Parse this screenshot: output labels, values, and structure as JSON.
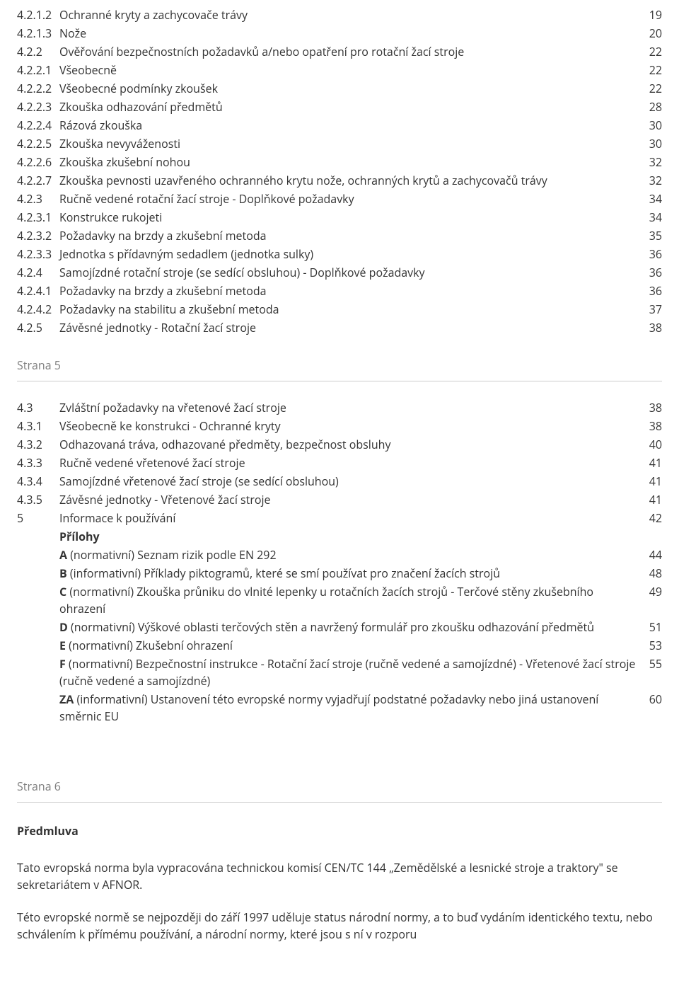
{
  "colors": {
    "text": "#333333",
    "muted": "#808080",
    "rule": "#cccccc",
    "background": "#ffffff"
  },
  "typography": {
    "font_family": "Segoe UI, Open Sans, Arial, sans-serif",
    "font_size_pt": 12,
    "line_height": 1.5
  },
  "toc1": [
    {
      "num": "4.2.1.2",
      "title": "Ochranné kryty a zachycovače trávy",
      "page": "19"
    },
    {
      "num": "4.2.1.3",
      "title": "Nože",
      "page": "20"
    },
    {
      "num": "4.2.2",
      "title": "Ověřování bezpečnostních požadavků a/nebo opatření pro rotační žací stroje",
      "page": "22"
    },
    {
      "num": "4.2.2.1",
      "title": "Všeobecně",
      "page": "22"
    },
    {
      "num": "4.2.2.2",
      "title": "Všeobecné podmínky zkoušek",
      "page": "22"
    },
    {
      "num": "4.2.2.3",
      "title": "Zkouška odhazování předmětů",
      "page": "28"
    },
    {
      "num": "4.2.2.4",
      "title": "Rázová zkouška",
      "page": "30"
    },
    {
      "num": "4.2.2.5",
      "title": "Zkouška nevyváženosti",
      "page": "30"
    },
    {
      "num": "4.2.2.6",
      "title": "Zkouška zkušební nohou",
      "page": "32"
    },
    {
      "num": "4.2.2.7",
      "title": "Zkouška pevnosti uzavřeného ochranného krytu nože, ochranných krytů a zachycovačů trávy",
      "page": "32"
    },
    {
      "num": "4.2.3",
      "title": "Ručně vedené rotační žací stroje - Doplňkové požadavky",
      "page": "34"
    },
    {
      "num": "4.2.3.1",
      "title": "Konstrukce rukojeti",
      "page": "34"
    },
    {
      "num": "4.2.3.2",
      "title": "Požadavky na brzdy a zkušební metoda",
      "page": "35"
    },
    {
      "num": "4.2.3.3",
      "title": "Jednotka s přídavným sedadlem (jednotka sulky)",
      "page": "36"
    },
    {
      "num": "4.2.4",
      "title": "Samojízdné rotační stroje (se sedící obsluhou) - Doplňkové požadavky",
      "page": "36"
    },
    {
      "num": "4.2.4.1",
      "title": "Požadavky na brzdy a zkušební metoda",
      "page": "36"
    },
    {
      "num": "4.2.4.2",
      "title": "Požadavky na stabilitu a zkušební metoda",
      "page": "37"
    },
    {
      "num": "4.2.5",
      "title": "Závěsné jednotky - Rotační žací stroje",
      "page": "38"
    }
  ],
  "strana5_label": "Strana 5",
  "toc2": [
    {
      "num": "4.3",
      "title_plain": "Zvláštní požadavky na vřetenové žací stroje",
      "title_bold": "",
      "page": "38"
    },
    {
      "num": "4.3.1",
      "title_plain": "Všeobecně ke konstrukci - Ochranné kryty",
      "title_bold": "",
      "page": "38"
    },
    {
      "num": "4.3.2",
      "title_plain": "Odhazovaná tráva, odhazované předměty, bezpečnost obsluhy",
      "title_bold": "",
      "page": "40"
    },
    {
      "num": "4.3.3",
      "title_plain": "Ručně vedené vřetenové žací stroje",
      "title_bold": "",
      "page": "41"
    },
    {
      "num": "4.3.4",
      "title_plain": "Samojízdné vřetenové žací stroje (se sedící obsluhou)",
      "title_bold": "",
      "page": "41"
    },
    {
      "num": "4.3.5",
      "title_plain": "Závěsné jednotky - Vřetenové žací stroje",
      "title_bold": "",
      "page": "41"
    },
    {
      "num": "5",
      "title_plain": "Informace k používání",
      "title_bold": "",
      "page": "42"
    },
    {
      "num": "",
      "title_plain": "",
      "title_bold": "Přílohy",
      "page": ""
    },
    {
      "num": "",
      "title_bold": "A",
      "title_plain": " (normativní) Seznam rizik podle EN 292",
      "page": "44"
    },
    {
      "num": "",
      "title_bold": "B",
      "title_plain": " (informativní) Příklady piktogramů, které se smí používat pro značení žacích strojů",
      "page": "48"
    },
    {
      "num": "",
      "title_bold": "C",
      "title_plain": " (normativní) Zkouška průniku do vlnité lepenky u rotačních žacích strojů - Terčové stěny zkušebního ohrazení",
      "page": "49"
    },
    {
      "num": "",
      "title_bold": "D",
      "title_plain": " (normativní) Výškové oblasti terčových stěn a navržený formulář pro zkoušku odhazování předmětů",
      "page": "51"
    },
    {
      "num": "",
      "title_bold": "E",
      "title_plain": " (normativní) Zkušební ohrazení",
      "page": "53"
    },
    {
      "num": "",
      "title_bold": "F",
      "title_plain": " (normativní) Bezpečnostní instrukce - Rotační žací stroje (ručně vedené a samojízdné) - Vřetenové žací stroje (ručně vedené a samojízdné)",
      "page": "55"
    },
    {
      "num": "",
      "title_bold": "ZA",
      "title_plain": " (informativní) Ustanovení této evropské normy vyjadřují podstatné požadavky nebo jiná ustanovení směrnic EU",
      "page": "60"
    }
  ],
  "strana6_label": "Strana 6",
  "preface_heading": "Předmluva",
  "preface_p1": "Tato evropská norma byla vypracována technickou komisí CEN/TC 144 „Zemědělské a lesnické stroje a traktory\" se sekretariátem v AFNOR.",
  "preface_p2": "Této evropské normě se nejpozději do září 1997 uděluje status národní normy, a to buď vydáním identického textu, nebo schválením k přímému používání, a národní normy, které jsou s ní v rozporu"
}
